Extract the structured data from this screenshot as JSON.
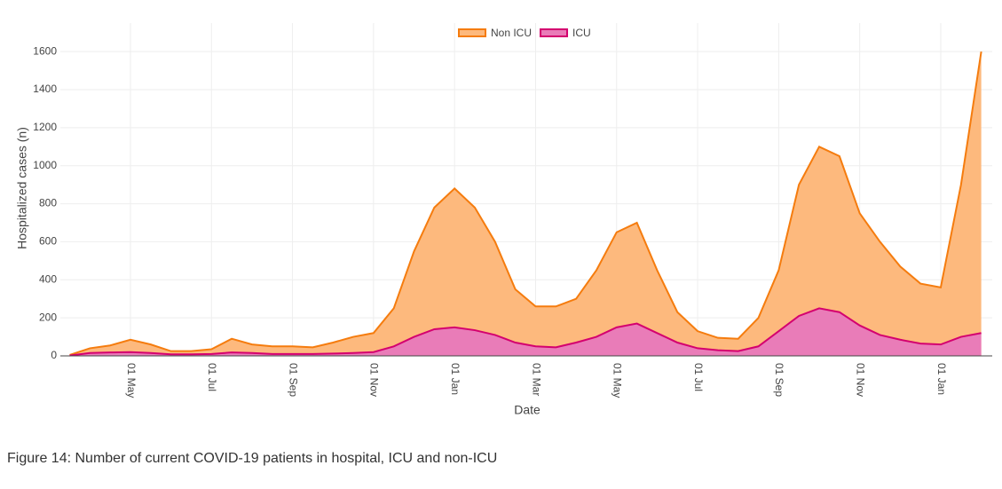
{
  "chart_data": {
    "type": "area",
    "caption": "Figure 14: Number of current COVID-19 patients in hospital, ICU and non-ICU",
    "xlabel": "Date",
    "ylabel": "Hospitalized cases (n)",
    "categories": [
      null,
      null,
      null,
      "01 May",
      null,
      null,
      null,
      "01 Jul",
      null,
      null,
      null,
      "01 Sep",
      null,
      null,
      null,
      "01 Nov",
      null,
      null,
      null,
      "01 Jan",
      null,
      null,
      null,
      "01 Mar",
      null,
      null,
      null,
      "01 May",
      null,
      null,
      null,
      "01 Jul",
      null,
      null,
      null,
      "01 Sep",
      null,
      null,
      null,
      "01 Nov",
      null,
      null,
      null,
      "01 Jan",
      null,
      null
    ],
    "series": [
      {
        "name": "Non ICU",
        "color": "#f57c0e",
        "fill": "#fdb97d",
        "values": [
          5,
          40,
          55,
          85,
          60,
          25,
          25,
          35,
          90,
          60,
          50,
          50,
          45,
          70,
          100,
          120,
          250,
          550,
          780,
          880,
          780,
          600,
          350,
          260,
          260,
          300,
          450,
          650,
          700,
          450,
          230,
          130,
          95,
          90,
          200,
          450,
          900,
          1100,
          1050,
          750,
          600,
          470,
          380,
          360,
          900,
          1600
        ]
      },
      {
        "name": "ICU",
        "color": "#d4006f",
        "fill": "#e97cb8",
        "values": [
          2,
          15,
          18,
          20,
          15,
          8,
          8,
          10,
          18,
          15,
          10,
          10,
          10,
          12,
          15,
          20,
          50,
          100,
          140,
          150,
          135,
          110,
          70,
          50,
          45,
          70,
          100,
          150,
          170,
          120,
          70,
          40,
          30,
          25,
          50,
          130,
          210,
          250,
          230,
          160,
          110,
          85,
          65,
          60,
          100,
          120
        ]
      }
    ],
    "ylim": [
      0,
      1750
    ],
    "yticks": [
      0,
      200,
      400,
      600,
      800,
      1000,
      1200,
      1400,
      1600
    ],
    "grid": true,
    "legend": "top"
  }
}
